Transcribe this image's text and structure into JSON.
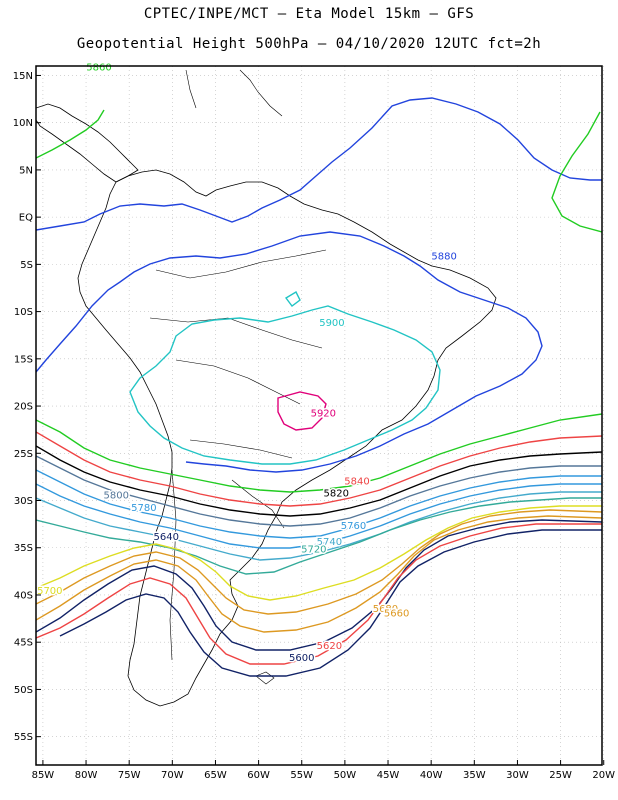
{
  "header": {
    "line1": "CPTEC/INPE/MCT –  Eta Model 15km – GFS",
    "line2": "Geopotential Height 500hPa – 04/10/2020 12UTC fct=2h"
  },
  "axes": {
    "lon_labels": [
      "85W",
      "80W",
      "75W",
      "70W",
      "65W",
      "60W",
      "55W",
      "50W",
      "45W",
      "40W",
      "35W",
      "30W",
      "25W",
      "20W"
    ],
    "lon_values": [
      -85,
      -80,
      -75,
      -70,
      -65,
      -60,
      -55,
      -50,
      -45,
      -40,
      -35,
      -30,
      -25,
      -20
    ],
    "lat_labels": [
      "15N",
      "10N",
      "5N",
      "EQ",
      "5S",
      "10S",
      "15S",
      "20S",
      "25S",
      "30S",
      "35S",
      "40S",
      "45S",
      "50S",
      "55S"
    ],
    "lat_values": [
      15,
      10,
      5,
      0,
      -5,
      -10,
      -15,
      -20,
      -25,
      -30,
      -35,
      -40,
      -45,
      -50,
      -55
    ],
    "lon_range": [
      -85.8,
      -20.2
    ],
    "lat_range": [
      -58.0,
      16.0
    ]
  },
  "contours": [
    {
      "value": "5920",
      "color": "#e0007a",
      "label_lon": -52.5,
      "label_lat": -21.1
    },
    {
      "value": "5900",
      "color": "#22c4c4",
      "label_lon": -51.5,
      "label_lat": -11.5
    },
    {
      "value": "5880",
      "color": "#2244dd",
      "label_lon": -38.5,
      "label_lat": -4.5
    },
    {
      "value": "5860",
      "color": "#22cc22",
      "label_lon": -78.5,
      "label_lat": 15.5
    },
    {
      "value": "5840",
      "color": "#ee4444",
      "label_lon": -48.6,
      "label_lat": -28.3
    },
    {
      "value": "5820",
      "color": "#000000",
      "label_lon": -51.0,
      "label_lat": -29.6
    },
    {
      "value": "5800",
      "color": "#557799",
      "label_lon": -76.5,
      "label_lat": -29.8
    },
    {
      "value": "5780",
      "color": "#3399dd",
      "label_lon": -73.3,
      "label_lat": -31.1
    },
    {
      "value": "5760",
      "color": "#3399dd",
      "label_lon": -49.0,
      "label_lat": -33.0
    },
    {
      "value": "5740",
      "color": "#44aacc",
      "label_lon": -51.8,
      "label_lat": -34.7
    },
    {
      "value": "5720",
      "color": "#33aa99",
      "label_lon": -53.6,
      "label_lat": -35.5
    },
    {
      "value": "5700",
      "color": "#dddd22",
      "label_lon": -84.2,
      "label_lat": -39.9
    },
    {
      "value": "5680",
      "color": "#dd9922",
      "label_lon": -45.3,
      "label_lat": -41.8
    },
    {
      "value": "5660",
      "color": "#dd9922",
      "label_lon": -44.0,
      "label_lat": -42.3
    },
    {
      "value": "5640",
      "color": "#112266",
      "label_lon": -70.7,
      "label_lat": -34.2
    },
    {
      "value": "5620",
      "color": "#ee4444",
      "label_lon": -51.8,
      "label_lat": -45.7
    },
    {
      "value": "5600",
      "color": "#112266",
      "label_lon": -55.0,
      "label_lat": -47.0
    }
  ],
  "colors": {
    "grid": "#bbbbbb",
    "coast": "#000000",
    "frame": "#000000"
  }
}
